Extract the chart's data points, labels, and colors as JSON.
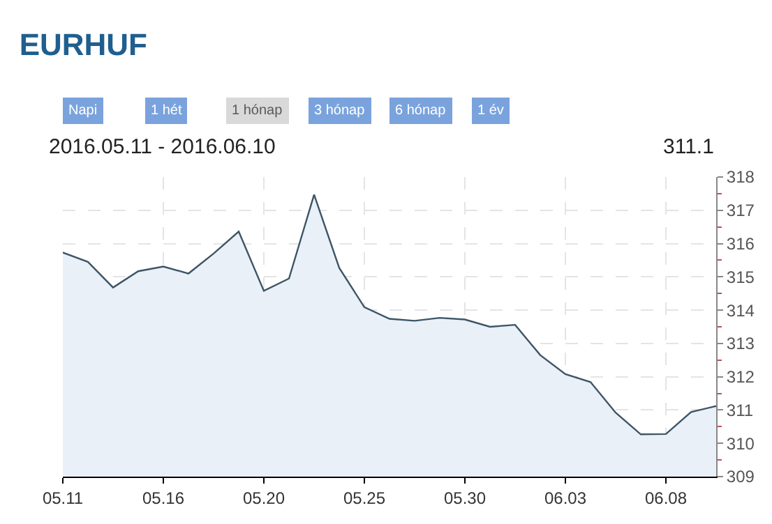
{
  "chart_data": {
    "type": "area",
    "title": "EURHUF",
    "subtitle": "2016.05.11 - 2016.06.10",
    "annotations": [
      "Napi",
      "1 hét",
      "1 hónap",
      "3 hónap",
      "6 hónap",
      "1 év",
      "311.1"
    ],
    "categories": [
      "05.11",
      null,
      null,
      null,
      "05.16",
      null,
      null,
      null,
      "05.20",
      null,
      null,
      null,
      "05.25",
      null,
      null,
      null,
      "05.30",
      null,
      null,
      null,
      "06.03",
      null,
      null,
      null,
      "06.08",
      null,
      null
    ],
    "series": [
      {
        "color": "#3d5566",
        "values": [
          315.73,
          315.45,
          314.68,
          315.17,
          315.31,
          315.1,
          315.7,
          316.36,
          314.58,
          314.95,
          317.47,
          315.27,
          314.09,
          313.74,
          313.68,
          313.77,
          313.72,
          313.5,
          313.56,
          312.65,
          312.08,
          311.84,
          310.92,
          310.27,
          310.28,
          310.94,
          311.12
        ]
      }
    ],
    "ylim": [
      309,
      318
    ],
    "yticks": [
      309,
      310,
      311,
      312,
      313,
      314,
      315,
      316,
      317,
      318
    ],
    "grid": true,
    "line_style": "solid",
    "marker": "none"
  }
}
